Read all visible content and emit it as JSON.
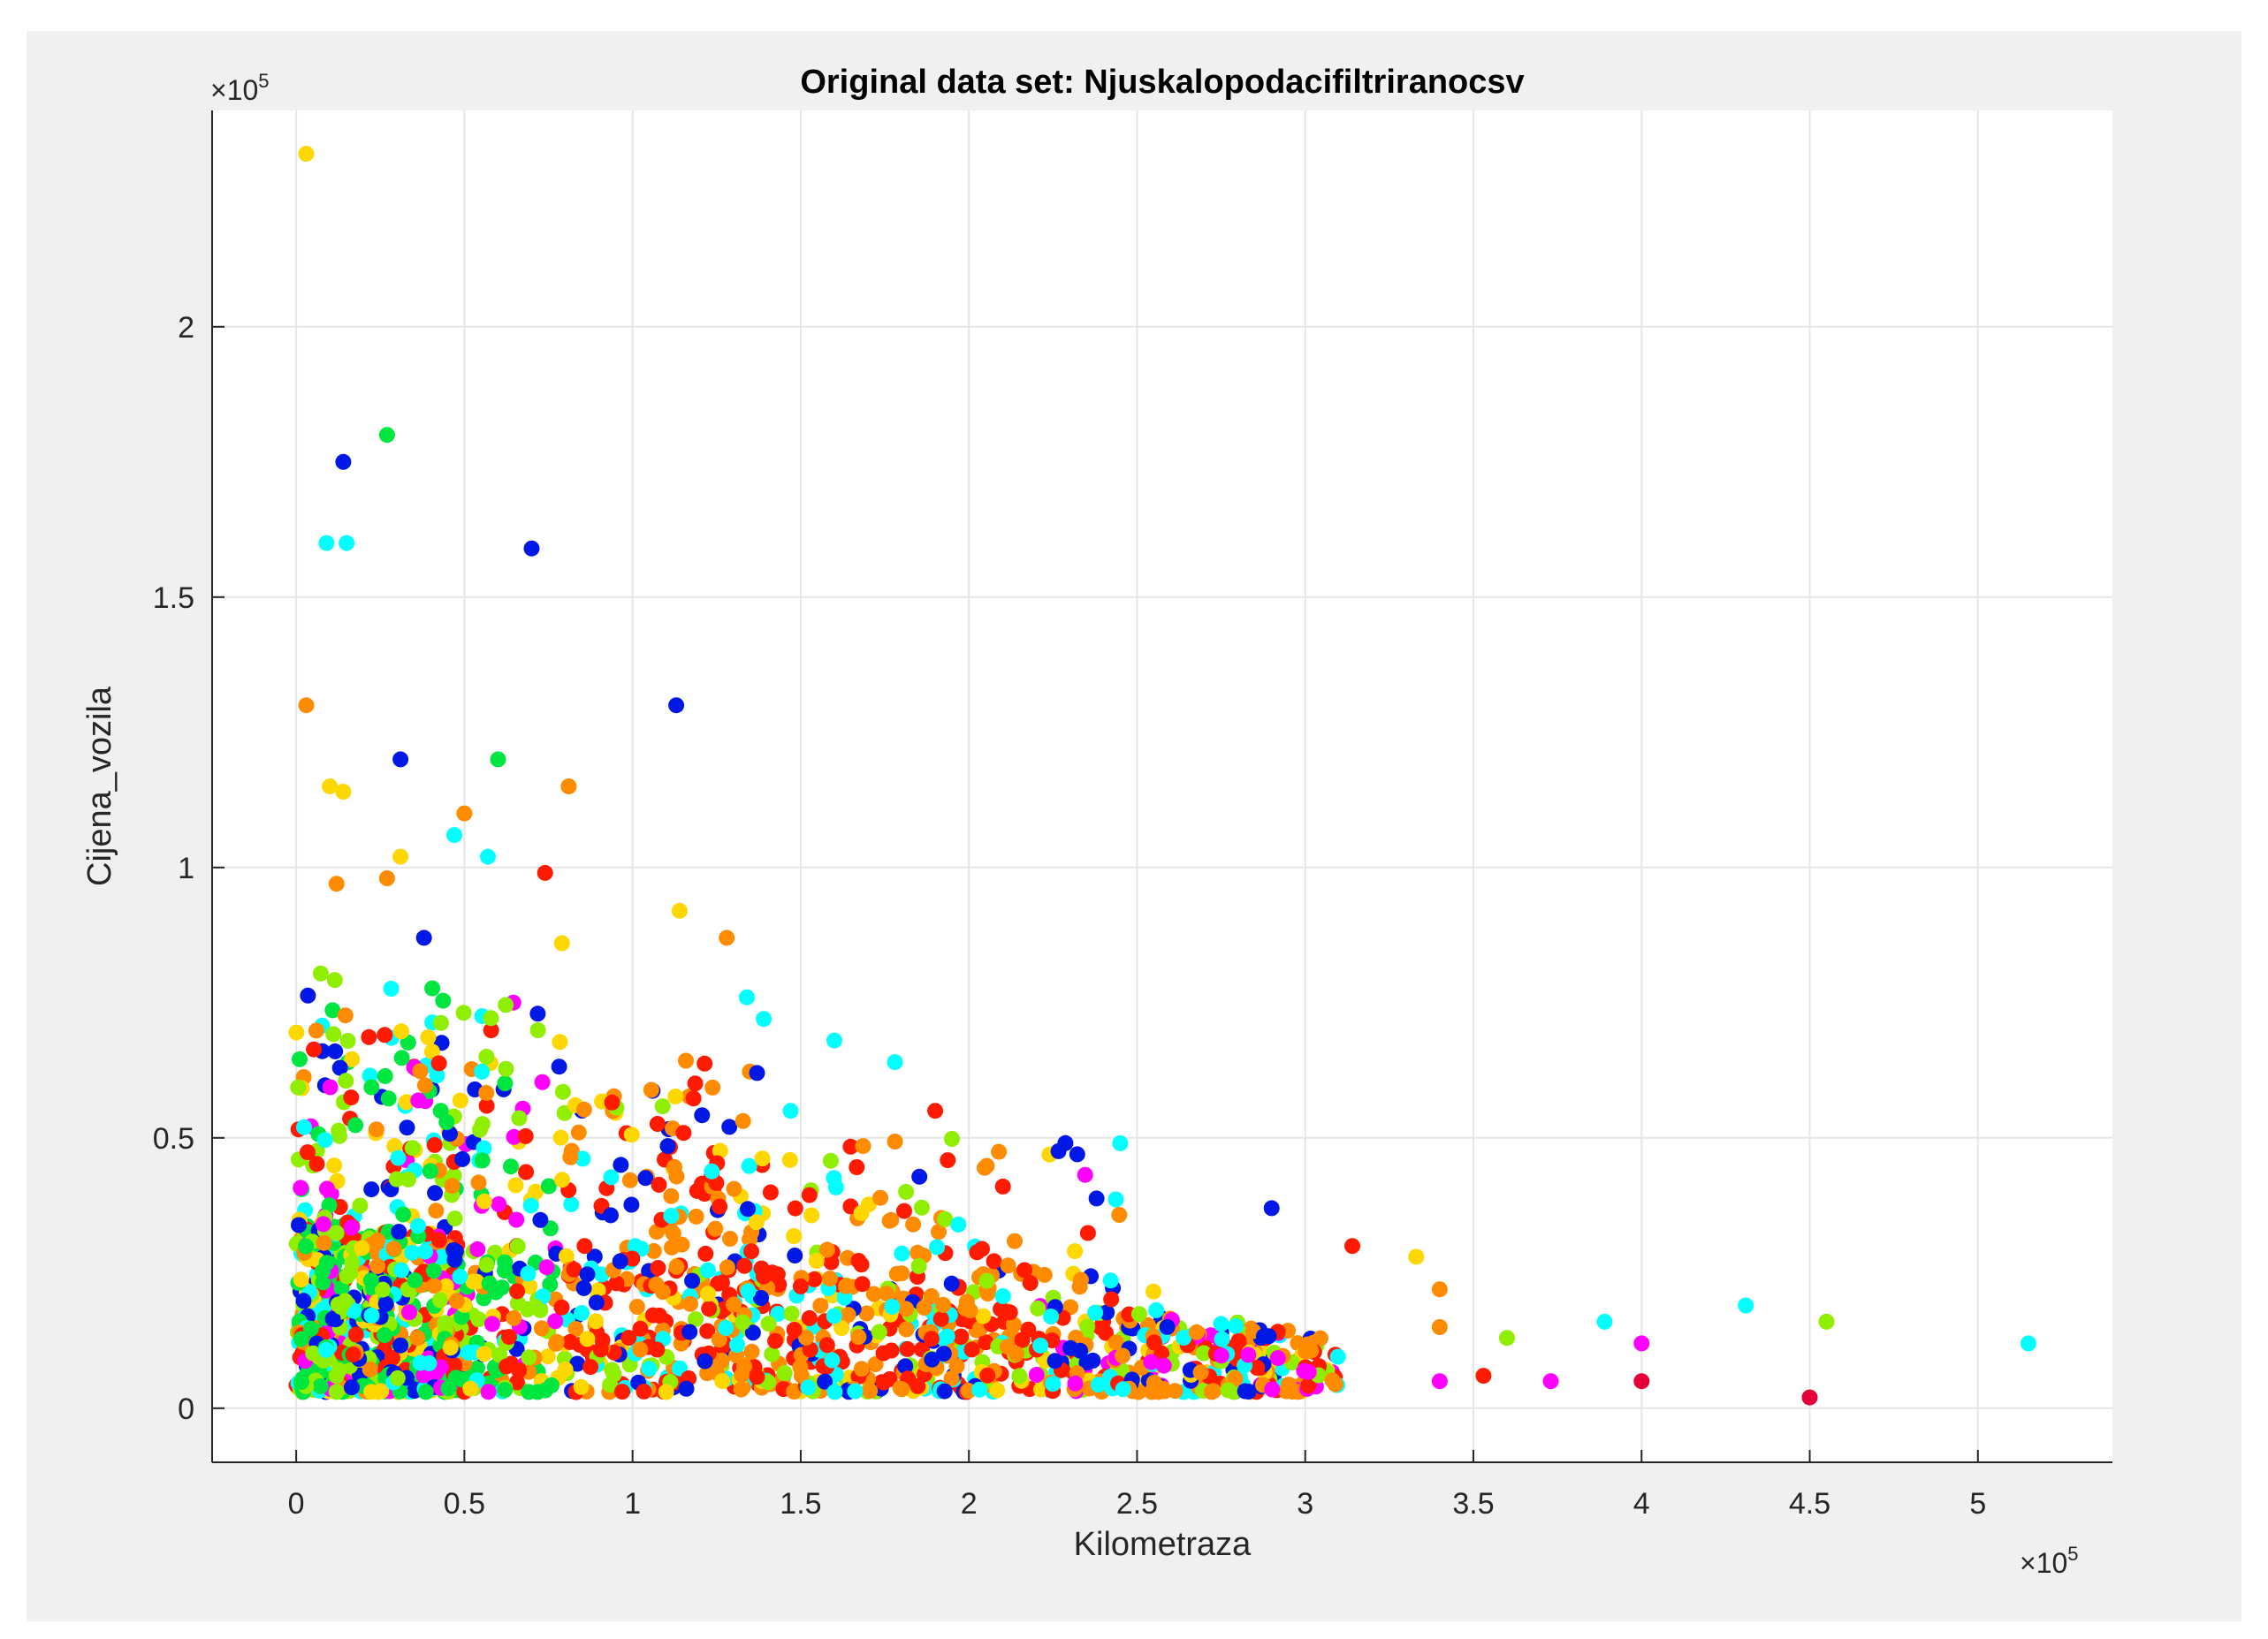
{
  "chart_data": {
    "type": "scatter",
    "title": "Original data set: Njuskalopodacifiltriranocsv",
    "xlabel": "Kilometraza",
    "ylabel": "Cijena_vozila",
    "x_exponent_base": "×10",
    "x_exponent_power": "5",
    "y_exponent_base": "×10",
    "y_exponent_power": "5",
    "xlim": [
      -0.25,
      5.4
    ],
    "ylim": [
      -0.1,
      2.4
    ],
    "x_ticks": [
      0,
      0.5,
      1,
      1.5,
      2,
      2.5,
      3,
      3.5,
      4,
      4.5,
      5
    ],
    "x_tick_labels": [
      "0",
      "0.5",
      "1",
      "1.5",
      "2",
      "2.5",
      "3",
      "3.5",
      "4",
      "4.5",
      "5"
    ],
    "y_ticks": [
      0,
      0.5,
      1,
      1.5,
      2
    ],
    "y_tick_labels": [
      "0",
      "0.5",
      "1",
      "1.5",
      "2"
    ],
    "grid": true,
    "colors": {
      "red": "#ff1a00",
      "orange": "#ff8c00",
      "yellow": "#ffd700",
      "lime": "#90ee00",
      "green": "#00e640",
      "cyan": "#00ffff",
      "blue": "#0018e6",
      "magenta": "#ff00ff",
      "crimson": "#e60039"
    },
    "notable_points": [
      {
        "x": 0.03,
        "y": 2.32,
        "c": "yellow"
      },
      {
        "x": 0.14,
        "y": 1.75,
        "c": "blue"
      },
      {
        "x": 0.27,
        "y": 1.8,
        "c": "green"
      },
      {
        "x": 0.09,
        "y": 1.6,
        "c": "cyan"
      },
      {
        "x": 0.15,
        "y": 1.6,
        "c": "cyan"
      },
      {
        "x": 0.7,
        "y": 1.59,
        "c": "blue"
      },
      {
        "x": 1.13,
        "y": 1.3,
        "c": "blue"
      },
      {
        "x": 0.03,
        "y": 1.3,
        "c": "orange"
      },
      {
        "x": 0.31,
        "y": 1.2,
        "c": "blue"
      },
      {
        "x": 0.6,
        "y": 1.2,
        "c": "green"
      },
      {
        "x": 0.1,
        "y": 1.15,
        "c": "yellow"
      },
      {
        "x": 0.14,
        "y": 1.14,
        "c": "yellow"
      },
      {
        "x": 0.81,
        "y": 1.15,
        "c": "orange"
      },
      {
        "x": 0.5,
        "y": 1.1,
        "c": "orange"
      },
      {
        "x": 0.47,
        "y": 1.06,
        "c": "cyan"
      },
      {
        "x": 0.57,
        "y": 1.02,
        "c": "cyan"
      },
      {
        "x": 0.31,
        "y": 1.02,
        "c": "yellow"
      },
      {
        "x": 0.27,
        "y": 0.98,
        "c": "orange"
      },
      {
        "x": 0.74,
        "y": 0.99,
        "c": "red"
      },
      {
        "x": 0.12,
        "y": 0.97,
        "c": "orange"
      },
      {
        "x": 1.14,
        "y": 0.92,
        "c": "yellow"
      },
      {
        "x": 0.38,
        "y": 0.87,
        "c": "blue"
      },
      {
        "x": 1.28,
        "y": 0.87,
        "c": "orange"
      },
      {
        "x": 0.79,
        "y": 0.86,
        "c": "yellow"
      },
      {
        "x": 1.34,
        "y": 0.76,
        "c": "cyan"
      },
      {
        "x": 1.39,
        "y": 0.72,
        "c": "cyan"
      },
      {
        "x": 1.6,
        "y": 0.68,
        "c": "cyan"
      },
      {
        "x": 1.78,
        "y": 0.64,
        "c": "cyan"
      },
      {
        "x": 1.37,
        "y": 0.62,
        "c": "blue"
      },
      {
        "x": 1.9,
        "y": 0.55,
        "c": "red"
      },
      {
        "x": 1.47,
        "y": 0.55,
        "c": "cyan"
      },
      {
        "x": 2.45,
        "y": 0.49,
        "c": "cyan"
      },
      {
        "x": 2.9,
        "y": 0.37,
        "c": "blue"
      },
      {
        "x": 3.14,
        "y": 0.3,
        "c": "red"
      },
      {
        "x": 3.33,
        "y": 0.28,
        "c": "yellow"
      },
      {
        "x": 3.4,
        "y": 0.22,
        "c": "orange"
      },
      {
        "x": 3.4,
        "y": 0.15,
        "c": "orange"
      },
      {
        "x": 3.53,
        "y": 0.06,
        "c": "red"
      },
      {
        "x": 3.6,
        "y": 0.13,
        "c": "lime"
      },
      {
        "x": 3.4,
        "y": 0.05,
        "c": "magenta"
      },
      {
        "x": 3.73,
        "y": 0.05,
        "c": "magenta"
      },
      {
        "x": 3.89,
        "y": 0.16,
        "c": "cyan"
      },
      {
        "x": 4.0,
        "y": 0.12,
        "c": "magenta"
      },
      {
        "x": 4.0,
        "y": 0.05,
        "c": "crimson"
      },
      {
        "x": 4.31,
        "y": 0.19,
        "c": "cyan"
      },
      {
        "x": 4.55,
        "y": 0.16,
        "c": "lime"
      },
      {
        "x": 4.5,
        "y": 0.02,
        "c": "crimson"
      },
      {
        "x": 5.15,
        "y": 0.12,
        "c": "cyan"
      }
    ]
  }
}
